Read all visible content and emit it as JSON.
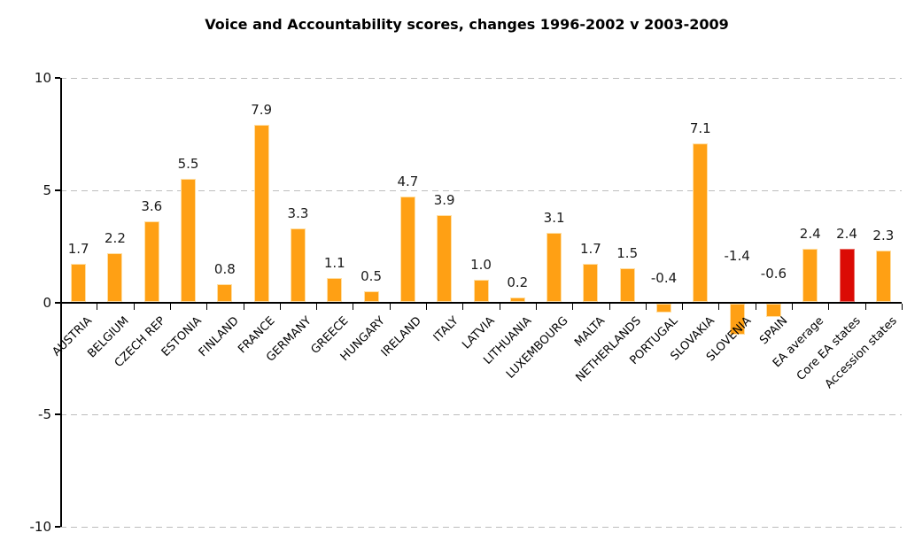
{
  "chart_data": {
    "type": "bar",
    "title": "Voice and Accountability scores, changes 1996-2002 v 2003-2009",
    "categories": [
      "AUSTRIA",
      "BELGIUM",
      "CZECH REP",
      "ESTONIA",
      "FINLAND",
      "FRANCE",
      "GERMANY",
      "GREECE",
      "HUNGARY",
      "IRELAND",
      "ITALY",
      "LATVIA",
      "LITHUANIA",
      "LUXEMBOURG",
      "MALTA",
      "NETHERLANDS",
      "PORTUGAL",
      "SLOVAKIA",
      "SLOVENIA",
      "SPAIN",
      "EA average",
      "Core EA states",
      "Accession states"
    ],
    "values": [
      1.7,
      2.2,
      3.6,
      5.5,
      0.8,
      7.9,
      3.3,
      1.1,
      0.5,
      4.7,
      3.9,
      1.0,
      0.2,
      3.1,
      1.7,
      1.5,
      -0.4,
      7.1,
      -1.4,
      -0.6,
      2.4,
      2.4,
      2.3
    ],
    "value_label_decimals": 1,
    "highlight_category": "Core EA states",
    "xlabel": "",
    "ylabel": "",
    "ylim": [
      -10,
      10
    ],
    "yticks": [
      10,
      5,
      0,
      -5,
      -10
    ],
    "grid": "horizontal dashed lines at 10, 5, -5, -10",
    "legend": "none",
    "x_label_rotation_deg": 45,
    "colors": {
      "bar": "#FFA014",
      "bar_border": "#FFDFA4",
      "highlight_bar": "#DB0B05",
      "highlight_border": "#E8736C",
      "gridline": "#BDBDBD",
      "axis": "#000000",
      "text": "#1A1A1A",
      "background": "#FFFFFF"
    }
  }
}
